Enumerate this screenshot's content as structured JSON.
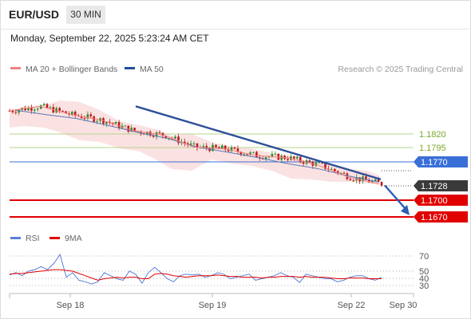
{
  "header": {
    "symbol": "EUR/USD",
    "timeframe": "30 MIN",
    "timestamp": "Monday, September 22, 2025 5:23:24 AM CET"
  },
  "legend": {
    "bollinger_label": "MA 20 + Bollinger Bands",
    "ma50_label": "MA 50",
    "source": "Research © 2025 Trading Central",
    "rsi_label": "RSI",
    "ma9_label": "9MA"
  },
  "colors": {
    "bollinger": "#f08080",
    "ma50": "#1f4e9c",
    "rsi": "#5b7fd6",
    "ma9": "#e00000",
    "support": "#e00000",
    "resistance_green": "#8fbc4a",
    "pivot_blue": "#3a6fd8",
    "candle_up": "#2e8b2e",
    "candle_down": "#c01818",
    "current_badge": "#3a3a3a"
  },
  "chart_data": [
    {
      "type": "line",
      "title": "",
      "ylim": [
        1.1655,
        1.186
      ],
      "x_ticks": [
        "Sep 18",
        "Sep 19",
        "Sep 22",
        "Sep 30"
      ],
      "levels": [
        {
          "label": "1.1820",
          "value": 1.182,
          "style": "resistance-green"
        },
        {
          "label": "1.1795",
          "value": 1.1795,
          "style": "resistance-green"
        },
        {
          "label": "1.1770",
          "value": 1.177,
          "style": "pivot-blue"
        },
        {
          "label": "1.1728",
          "value": 1.1728,
          "style": "current"
        },
        {
          "label": "1.1700",
          "value": 1.17,
          "style": "support-red"
        },
        {
          "label": "1.1670",
          "value": 1.167,
          "style": "support-red"
        }
      ],
      "series": [
        {
          "name": "MA 50",
          "values": [
            1.1863,
            1.1855,
            1.1848,
            1.1836,
            1.1823,
            1.1812,
            1.1796,
            1.1787,
            1.1777,
            1.1766,
            1.1757,
            1.1744,
            1.1733
          ]
        },
        {
          "name": "MA 20 + Bollinger Bands",
          "values": [
            1.1862,
            1.187,
            1.1855,
            1.1845,
            1.1826,
            1.1818,
            1.1796,
            1.1793,
            1.1781,
            1.1777,
            1.1764,
            1.1742,
            1.173
          ]
        }
      ],
      "trendline": {
        "start": 1.187,
        "end": 1.1738
      },
      "forecast_arrow": {
        "start": 1.1727,
        "end": 1.1673
      }
    },
    {
      "type": "line",
      "title": "",
      "ylim": [
        20,
        80
      ],
      "y_ticks": [
        70,
        50,
        40,
        30
      ],
      "series": [
        {
          "name": "RSI",
          "values": [
            45,
            48,
            44,
            50,
            52,
            56,
            52,
            60,
            72,
            42,
            48,
            38,
            36,
            33,
            36,
            48,
            44,
            40,
            38,
            50,
            46,
            34,
            48,
            55,
            48,
            40,
            36,
            44,
            46,
            45,
            46,
            42,
            44,
            48,
            46,
            40,
            42,
            44,
            46,
            38,
            40,
            42,
            44,
            48,
            44,
            42,
            35,
            46,
            44,
            42,
            40,
            40,
            36,
            38,
            42,
            44,
            44,
            40,
            38,
            42
          ]
        },
        {
          "name": "9MA",
          "values": [
            46,
            47,
            47,
            48,
            49,
            50,
            51,
            52,
            52,
            51,
            50,
            47,
            44,
            41,
            38,
            40,
            41,
            42,
            41,
            42,
            42,
            40,
            40,
            46,
            47,
            46,
            44,
            43,
            42,
            43,
            44,
            44,
            44,
            45,
            44,
            43,
            43,
            42,
            42,
            42,
            41,
            42,
            42,
            43,
            43,
            43,
            42,
            43,
            42,
            42,
            42,
            41,
            40,
            40,
            41,
            41,
            41,
            40,
            40,
            40
          ]
        }
      ]
    }
  ]
}
